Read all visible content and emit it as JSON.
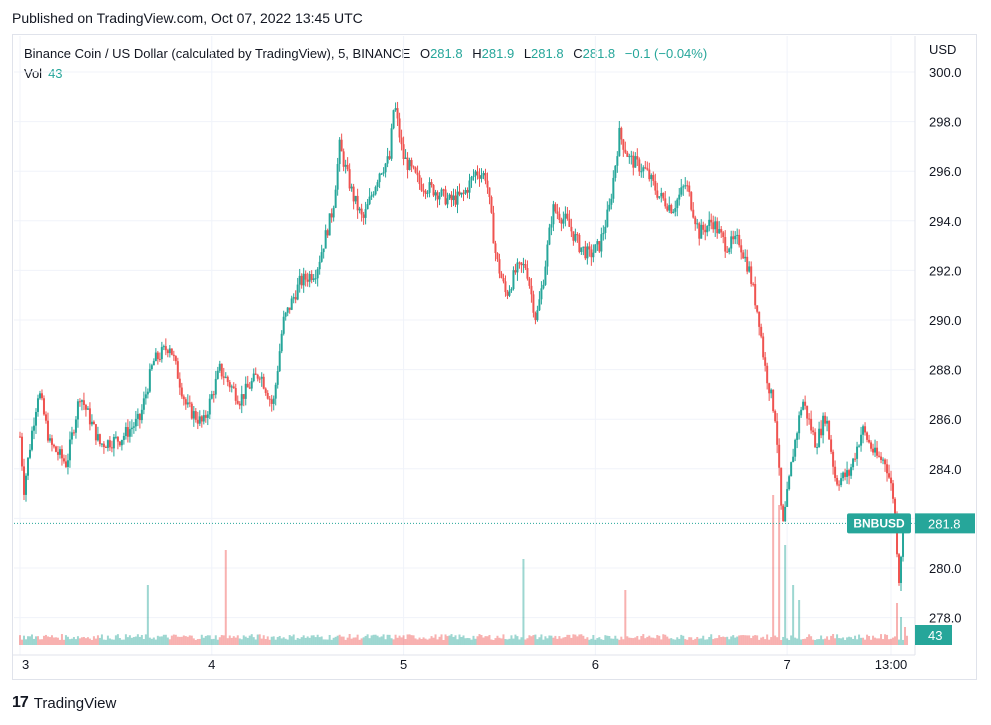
{
  "header": {
    "published": "Published on TradingView.com, Oct 07, 2022 13:45 UTC"
  },
  "legend": {
    "title": "Binance Coin / US Dollar (calculated by TradingView), 5, BINANCE",
    "o_label": "O",
    "o_value": "281.8",
    "h_label": "H",
    "h_value": "281.9",
    "l_label": "L",
    "l_value": "281.8",
    "c_label": "C",
    "c_value": "281.8",
    "change": "−0.1 (−0.04%)",
    "vol_label": "Vol",
    "vol_value": "43"
  },
  "currency": "USD",
  "price_badge": {
    "symbol": "BNBUSD",
    "price": "281.8"
  },
  "volume_badge": "43",
  "footer": {
    "brand": "TradingView",
    "logo_text": "17"
  },
  "colors": {
    "up": "#26a69a",
    "down": "#ef5350",
    "grid": "#f0f3fa",
    "axis_text": "#131722"
  },
  "chart_data": {
    "type": "candlestick",
    "symbol": "BNBUSD",
    "interval": "5",
    "ylim": [
      277,
      300.5
    ],
    "y_ticks": [
      "300.0",
      "298.0",
      "296.0",
      "294.0",
      "292.0",
      "290.0",
      "288.0",
      "286.0",
      "284.0",
      "282.0",
      "280.0",
      "278.0"
    ],
    "x_ticks": [
      {
        "label": "3",
        "t": 0
      },
      {
        "label": "4",
        "t": 288
      },
      {
        "label": "5",
        "t": 576
      },
      {
        "label": "6",
        "t": 864
      },
      {
        "label": "7",
        "t": 1152
      },
      {
        "label": "13:00",
        "t": 1308
      }
    ],
    "last_price": 281.8,
    "price_path": [
      [
        0,
        285.3
      ],
      [
        6,
        283.2
      ],
      [
        18,
        285.5
      ],
      [
        28,
        287.2
      ],
      [
        45,
        285.0
      ],
      [
        70,
        284.2
      ],
      [
        90,
        287.0
      ],
      [
        120,
        285.0
      ],
      [
        150,
        285.2
      ],
      [
        180,
        286.0
      ],
      [
        200,
        288.3
      ],
      [
        225,
        289.0
      ],
      [
        250,
        286.5
      ],
      [
        275,
        285.8
      ],
      [
        300,
        288.0
      ],
      [
        330,
        286.8
      ],
      [
        360,
        287.9
      ],
      [
        380,
        286.5
      ],
      [
        395,
        289.9
      ],
      [
        420,
        291.5
      ],
      [
        445,
        292.0
      ],
      [
        470,
        294.5
      ],
      [
        480,
        297.0
      ],
      [
        500,
        295.0
      ],
      [
        515,
        294.0
      ],
      [
        540,
        296.0
      ],
      [
        555,
        296.5
      ],
      [
        562,
        298.8
      ],
      [
        575,
        296.6
      ],
      [
        600,
        295.5
      ],
      [
        625,
        295.2
      ],
      [
        645,
        294.8
      ],
      [
        665,
        295.0
      ],
      [
        685,
        296.0
      ],
      [
        700,
        295.8
      ],
      [
        715,
        292.5
      ],
      [
        730,
        291.0
      ],
      [
        745,
        292.0
      ],
      [
        760,
        292.2
      ],
      [
        775,
        290.0
      ],
      [
        785,
        291.5
      ],
      [
        800,
        294.5
      ],
      [
        820,
        294.0
      ],
      [
        840,
        293.0
      ],
      [
        855,
        292.6
      ],
      [
        870,
        293.0
      ],
      [
        885,
        294.5
      ],
      [
        900,
        297.5
      ],
      [
        915,
        296.5
      ],
      [
        940,
        296.0
      ],
      [
        960,
        295.0
      ],
      [
        980,
        294.5
      ],
      [
        1000,
        295.5
      ],
      [
        1020,
        293.5
      ],
      [
        1040,
        294.0
      ],
      [
        1060,
        293.0
      ],
      [
        1080,
        293.2
      ],
      [
        1095,
        292.0
      ],
      [
        1110,
        290.0
      ],
      [
        1118,
        288.2
      ],
      [
        1135,
        286.0
      ],
      [
        1145,
        281.5
      ],
      [
        1160,
        284.5
      ],
      [
        1175,
        286.8
      ],
      [
        1195,
        285.0
      ],
      [
        1210,
        286.2
      ],
      [
        1225,
        283.5
      ],
      [
        1245,
        283.8
      ],
      [
        1265,
        285.6
      ],
      [
        1285,
        284.5
      ],
      [
        1300,
        284.3
      ],
      [
        1312,
        282.8
      ],
      [
        1320,
        279.6
      ],
      [
        1328,
        282.3
      ],
      [
        1334,
        281.8
      ]
    ],
    "volume": {
      "baseline": 5,
      "spikes": [
        {
          "t": 192,
          "v": 60
        },
        {
          "t": 310,
          "v": 95
        },
        {
          "t": 755,
          "v": 86
        },
        {
          "t": 910,
          "v": 55
        },
        {
          "t": 1130,
          "v": 150
        },
        {
          "t": 1140,
          "v": 140
        },
        {
          "t": 1150,
          "v": 100
        },
        {
          "t": 1160,
          "v": 60
        },
        {
          "t": 1170,
          "v": 45
        },
        {
          "t": 1318,
          "v": 42
        },
        {
          "t": 1324,
          "v": 28
        },
        {
          "t": 1330,
          "v": 18
        }
      ]
    }
  }
}
